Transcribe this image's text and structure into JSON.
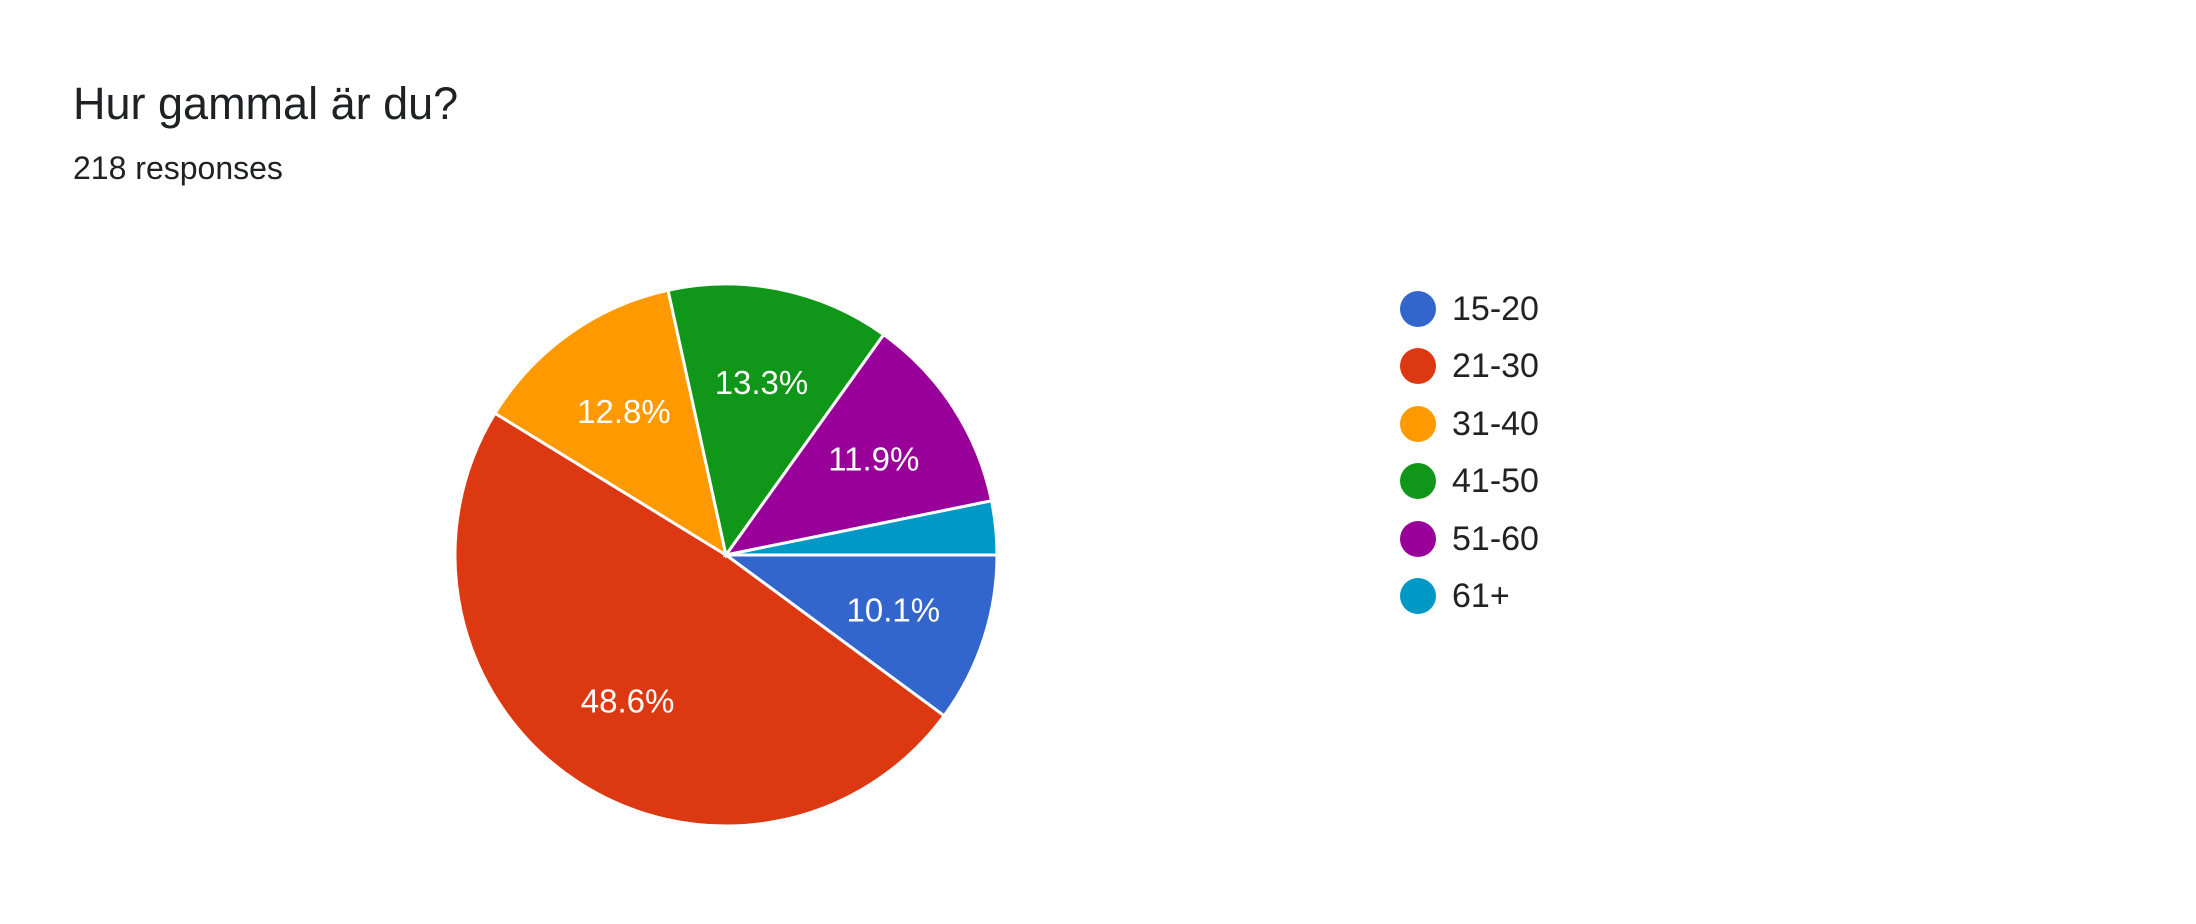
{
  "title": "Hur gammal är du?",
  "subtitle": "218 responses",
  "chart_data": {
    "type": "pie",
    "title": "Hur gammal är du?",
    "subtitle": "218 responses",
    "categories": [
      "15-20",
      "21-30",
      "31-40",
      "41-50",
      "51-60",
      "61+"
    ],
    "values": [
      10.1,
      48.6,
      12.8,
      13.3,
      11.9,
      3.2
    ],
    "data_labels": [
      "10.1%",
      "48.6%",
      "12.8%",
      "13.3%",
      "11.9%",
      ""
    ],
    "colors": [
      "#3366cc",
      "#dc3912",
      "#ff9900",
      "#109618",
      "#990099",
      "#0099c6"
    ],
    "legend_position": "right",
    "start": "3 o'clock, clockwise"
  }
}
